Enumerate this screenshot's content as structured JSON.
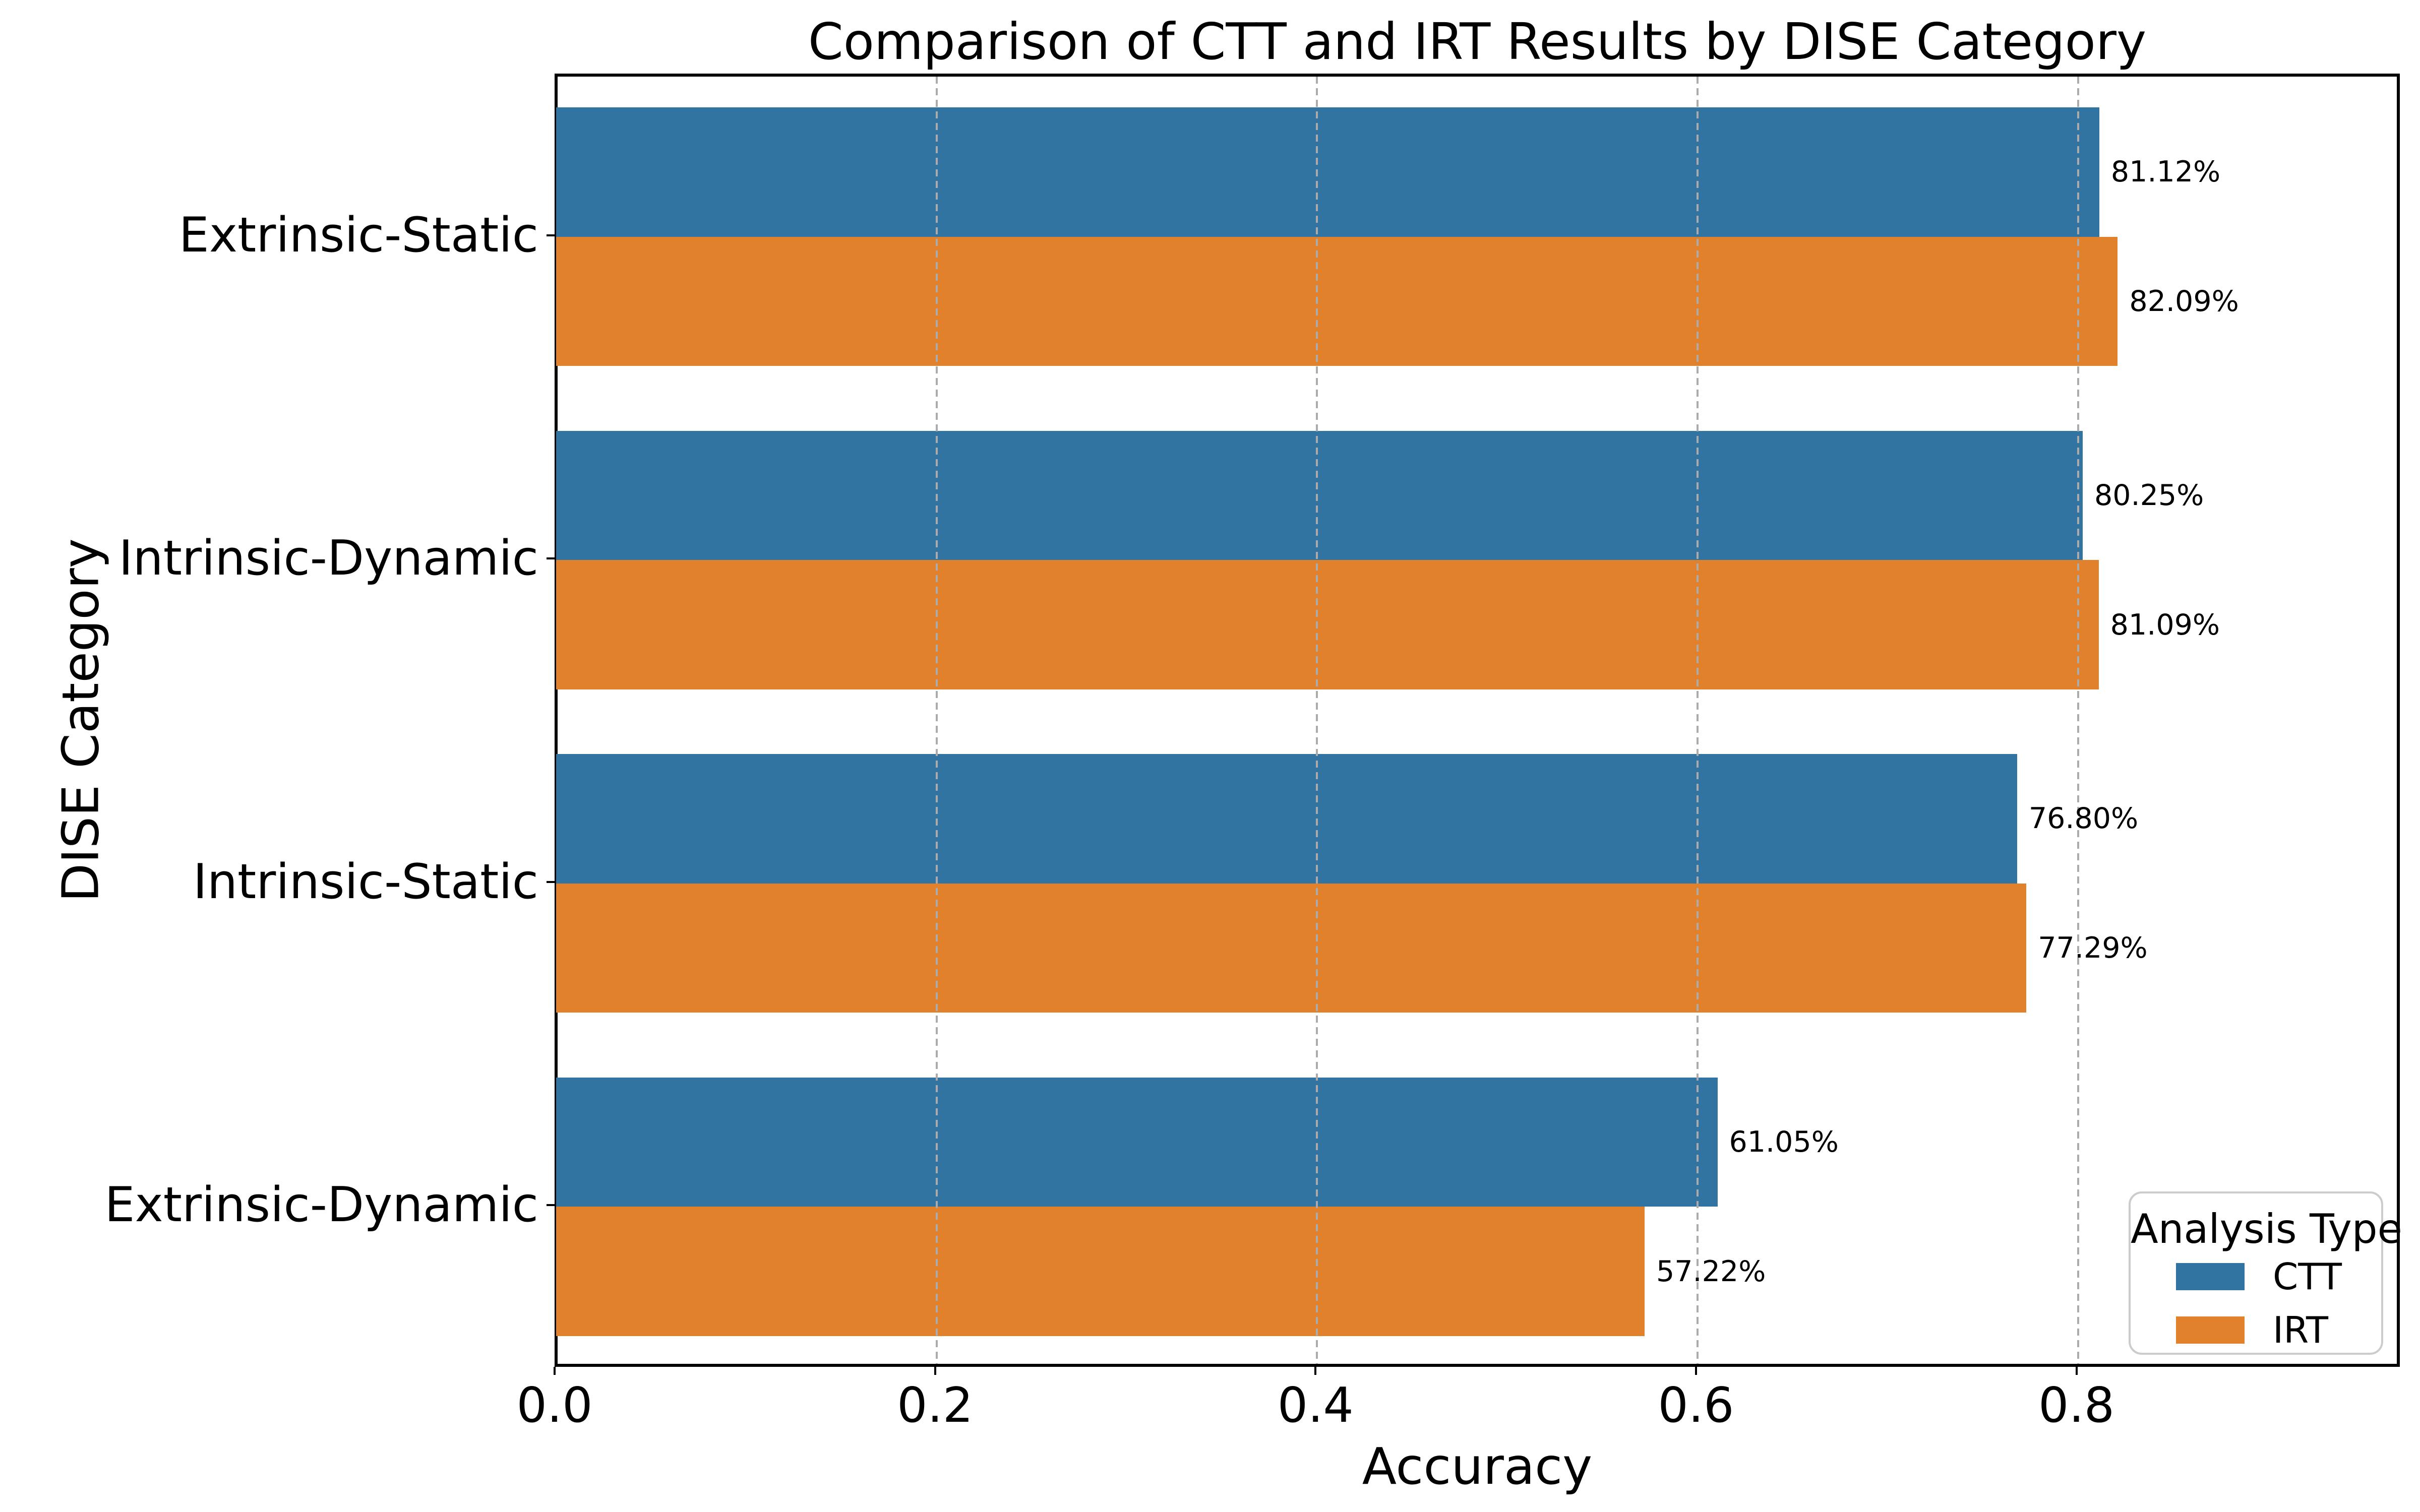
{
  "chart_data": {
    "type": "bar",
    "orientation": "horizontal",
    "title": "Comparison of CTT and IRT Results by DISE Category",
    "xlabel": "Accuracy",
    "ylabel": "DISE Category",
    "categories": [
      "Extrinsic-Static",
      "Intrinsic-Dynamic",
      "Intrinsic-Static",
      "Extrinsic-Dynamic"
    ],
    "series": [
      {
        "name": "CTT",
        "color": "#3274a1",
        "values": [
          0.8112,
          0.8025,
          0.768,
          0.6105
        ],
        "value_labels": [
          "81.12%",
          "80.25%",
          "76.80%",
          "61.05%"
        ]
      },
      {
        "name": "IRT",
        "color": "#e1812c",
        "values": [
          0.8209,
          0.8109,
          0.7729,
          0.5722
        ],
        "value_labels": [
          "82.09%",
          "81.09%",
          "77.29%",
          "57.22%"
        ]
      }
    ],
    "xlim": [
      0,
      0.97
    ],
    "xticks": [
      0.0,
      0.2,
      0.4,
      0.6,
      0.8
    ],
    "xtick_labels": [
      "0.0",
      "0.2",
      "0.4",
      "0.6",
      "0.8"
    ],
    "grid": {
      "axis": "x",
      "line_style": "dashed",
      "color": "#ababab",
      "on_top": true
    },
    "legend": {
      "title": "Analysis Type",
      "position": "lower right"
    },
    "styles": {
      "spine_color": "#000000",
      "legend_border_color": "#cccccc",
      "text_color": "#000000",
      "background": "#ffffff"
    }
  }
}
